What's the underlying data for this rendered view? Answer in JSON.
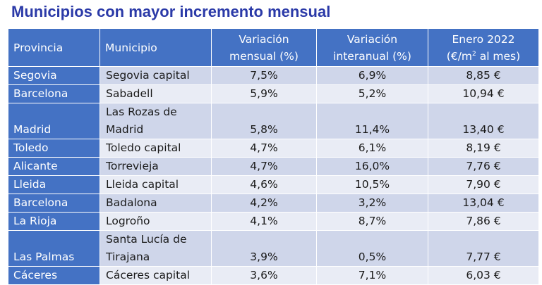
{
  "title": "Municipios con mayor incremento mensual",
  "headers": {
    "provincia": "Provincia",
    "municipio": "Municipio",
    "var_mensual_1": "Variación",
    "var_mensual_2": "mensual (%)",
    "var_interanual_1": "Variación",
    "var_interanual_2": "interanual (%)",
    "enero_1": "Enero 2022",
    "enero_2a": "(€/m",
    "enero_2sup": "2",
    "enero_2b": " al mes)"
  },
  "rows": [
    {
      "provincia": "Segovia",
      "municipio_1": "Segovia capital",
      "municipio_2": "",
      "mensual": "7,5%",
      "interanual": "6,9%",
      "enero": "8,85 €"
    },
    {
      "provincia": "Barcelona",
      "municipio_1": "Sabadell",
      "municipio_2": "",
      "mensual": "5,9%",
      "interanual": "5,2%",
      "enero": "10,94 €"
    },
    {
      "provincia": "Madrid",
      "municipio_1": "Las Rozas de",
      "municipio_2": "Madrid",
      "mensual": "5,8%",
      "interanual": "11,4%",
      "enero": "13,40 €"
    },
    {
      "provincia": "Toledo",
      "municipio_1": "Toledo capital",
      "municipio_2": "",
      "mensual": "4,7%",
      "interanual": "6,1%",
      "enero": "8,19 €"
    },
    {
      "provincia": "Alicante",
      "municipio_1": "Torrevieja",
      "municipio_2": "",
      "mensual": "4,7%",
      "interanual": "16,0%",
      "enero": "7,76 €"
    },
    {
      "provincia": "Lleida",
      "municipio_1": "Lleida capital",
      "municipio_2": "",
      "mensual": "4,6%",
      "interanual": "10,5%",
      "enero": "7,90 €"
    },
    {
      "provincia": "Barcelona",
      "municipio_1": "Badalona",
      "municipio_2": "",
      "mensual": "4,2%",
      "interanual": "3,2%",
      "enero": "13,04 €"
    },
    {
      "provincia": "La Rioja",
      "municipio_1": "Logroño",
      "municipio_2": "",
      "mensual": "4,1%",
      "interanual": "8,7%",
      "enero": "7,86 €"
    },
    {
      "provincia": "Las Palmas",
      "municipio_1": "Santa Lucía de",
      "municipio_2": "Tirajana",
      "mensual": "3,9%",
      "interanual": "0,5%",
      "enero": "7,77 €"
    },
    {
      "provincia": "Cáceres",
      "municipio_1": "Cáceres capital",
      "municipio_2": "",
      "mensual": "3,6%",
      "interanual": "7,1%",
      "enero": "6,03 €"
    }
  ],
  "colors": {
    "title": "#2b3aa8",
    "header_bg": "#4472c4",
    "row_odd": "#cfd6ea",
    "row_even": "#e9ecf5"
  }
}
